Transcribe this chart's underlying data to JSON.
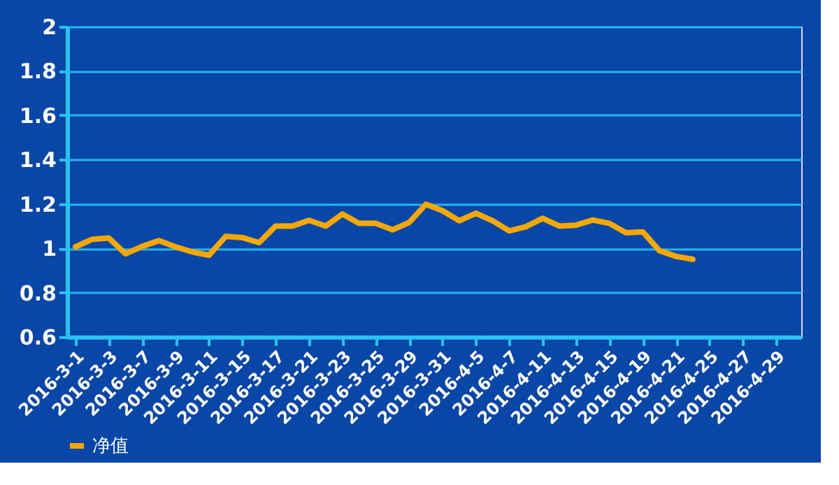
{
  "chart_data": {
    "type": "line",
    "categories": [
      "2016-3-1",
      null,
      "2016-3-3",
      null,
      "2016-3-7",
      null,
      "2016-3-9",
      null,
      "2016-3-11",
      null,
      "2016-3-15",
      null,
      "2016-3-17",
      null,
      "2016-3-21",
      null,
      "2016-3-23",
      null,
      "2016-3-25",
      null,
      "2016-3-29",
      null,
      "2016-3-31",
      null,
      "2016-4-5",
      null,
      "2016-4-7",
      null,
      "2016-4-11",
      null,
      "2016-4-13",
      null,
      "2016-4-15",
      null,
      "2016-4-19",
      null,
      "2016-4-21",
      null,
      "2016-4-25",
      null,
      "2016-4-27",
      null,
      "2016-4-29",
      null
    ],
    "series": [
      {
        "name": "净值",
        "color": "#f5a800",
        "values": [
          1.006,
          1.04,
          1.046,
          0.975,
          1.008,
          1.034,
          1.006,
          0.983,
          0.968,
          1.053,
          1.048,
          1.025,
          1.1,
          1.1,
          1.126,
          1.1,
          1.154,
          1.112,
          1.112,
          1.083,
          1.116,
          1.198,
          1.169,
          1.124,
          1.158,
          1.124,
          1.078,
          1.097,
          1.135,
          1.1,
          1.104,
          1.127,
          1.112,
          1.07,
          1.074,
          0.989,
          0.963,
          0.95,
          null,
          null,
          null,
          null,
          null,
          null
        ]
      }
    ],
    "ylim": [
      0.6,
      2
    ],
    "yticks": [
      0.6,
      0.8,
      1,
      1.2,
      1.4,
      1.6,
      1.8,
      2
    ],
    "grid": "y",
    "legend": "bottom left",
    "marker": "none",
    "line_style": "solid"
  }
}
